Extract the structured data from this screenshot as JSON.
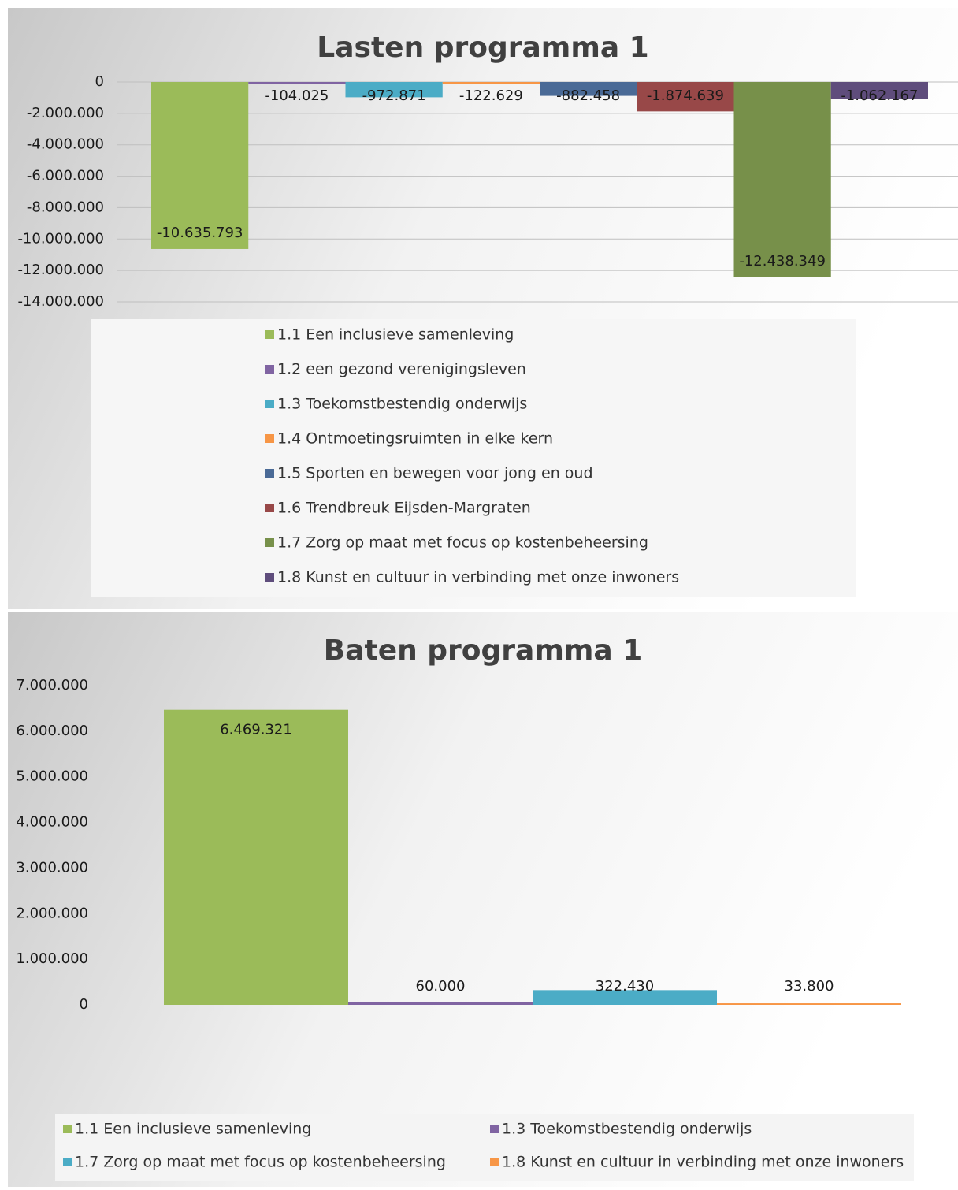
{
  "chart_data": [
    {
      "type": "bar",
      "title": "Lasten programma 1",
      "series": [
        {
          "name": "1.1 Een inclusieve samenleving",
          "color": "#9bbb59",
          "values": [
            -10635793
          ],
          "value_labels": [
            "-10.635.793"
          ]
        },
        {
          "name": "1.2 een gezond verenigingsleven",
          "color": "#8064a2",
          "values": [
            -104025
          ],
          "value_labels": [
            "-104.025"
          ]
        },
        {
          "name": "1.3 Toekomstbestendig onderwijs",
          "color": "#4bacc6",
          "values": [
            -972871
          ],
          "value_labels": [
            "-972.871"
          ]
        },
        {
          "name": "1.4 Ontmoetingsruimten in elke kern",
          "color": "#f79646",
          "values": [
            -122629
          ],
          "value_labels": [
            "-122.629"
          ]
        },
        {
          "name": "1.5 Sporten en bewegen voor jong en oud",
          "color": "#4a6a96",
          "values": [
            -882458
          ],
          "value_labels": [
            "-882.458"
          ]
        },
        {
          "name": "1.6 Trendbreuk Eijsden-Margraten",
          "color": "#984848",
          "values": [
            -1874639
          ],
          "value_labels": [
            "-1.874.639"
          ]
        },
        {
          "name": "1.7 Zorg op maat met focus op kostenbeheersing",
          "color": "#77904a",
          "values": [
            -12438349
          ],
          "value_labels": [
            "-12.438.349"
          ]
        },
        {
          "name": "1.8 Kunst en cultuur in verbinding met onze inwoners",
          "color": "#5f4d7c",
          "values": [
            -1062167
          ],
          "value_labels": [
            "-1.062.167"
          ]
        }
      ],
      "ylim": [
        -14000000,
        0
      ],
      "yticks": [
        0,
        {
          "value": -2000000,
          "label": "-2.000.000"
        },
        {
          "value": -4000000,
          "label": "-4.000.000"
        },
        {
          "value": -6000000,
          "label": "-6.000.000"
        },
        {
          "value": -8000000,
          "label": "-8.000.000"
        },
        {
          "value": -10000000,
          "label": "-10.000.000"
        },
        {
          "value": -12000000,
          "label": "-12.000.000"
        },
        {
          "value": -14000000,
          "label": "-14.000.000"
        }
      ],
      "grid": true
    },
    {
      "type": "bar",
      "title": "Baten programma 1",
      "series": [
        {
          "name": "1.1 Een inclusieve samenleving",
          "color": "#9bbb59",
          "values": [
            6469321
          ],
          "value_labels": [
            "6.469.321"
          ]
        },
        {
          "name": "1.3 Toekomstbestendig onderwijs",
          "color": "#8064a2",
          "values": [
            60000
          ],
          "value_labels": [
            "60.000"
          ]
        },
        {
          "name": "1.7 Zorg op maat met focus op kostenbeheersing",
          "color": "#4bacc6",
          "values": [
            322430
          ],
          "value_labels": [
            "322.430"
          ]
        },
        {
          "name": "1.8 Kunst en cultuur in verbinding met onze inwoners",
          "color": "#f79646",
          "values": [
            33800
          ],
          "value_labels": [
            "33.800"
          ]
        }
      ],
      "ylim": [
        0,
        7000000
      ],
      "yticks": [
        0,
        {
          "value": 1000000,
          "label": "1.000.000"
        },
        {
          "value": 2000000,
          "label": "2.000.000"
        },
        {
          "value": 3000000,
          "label": "3.000.000"
        },
        {
          "value": 4000000,
          "label": "4.000.000"
        },
        {
          "value": 5000000,
          "label": "5.000.000"
        },
        {
          "value": 6000000,
          "label": "6.000.000"
        },
        {
          "value": 7000000,
          "label": "7.000.000"
        }
      ],
      "grid": false
    }
  ]
}
